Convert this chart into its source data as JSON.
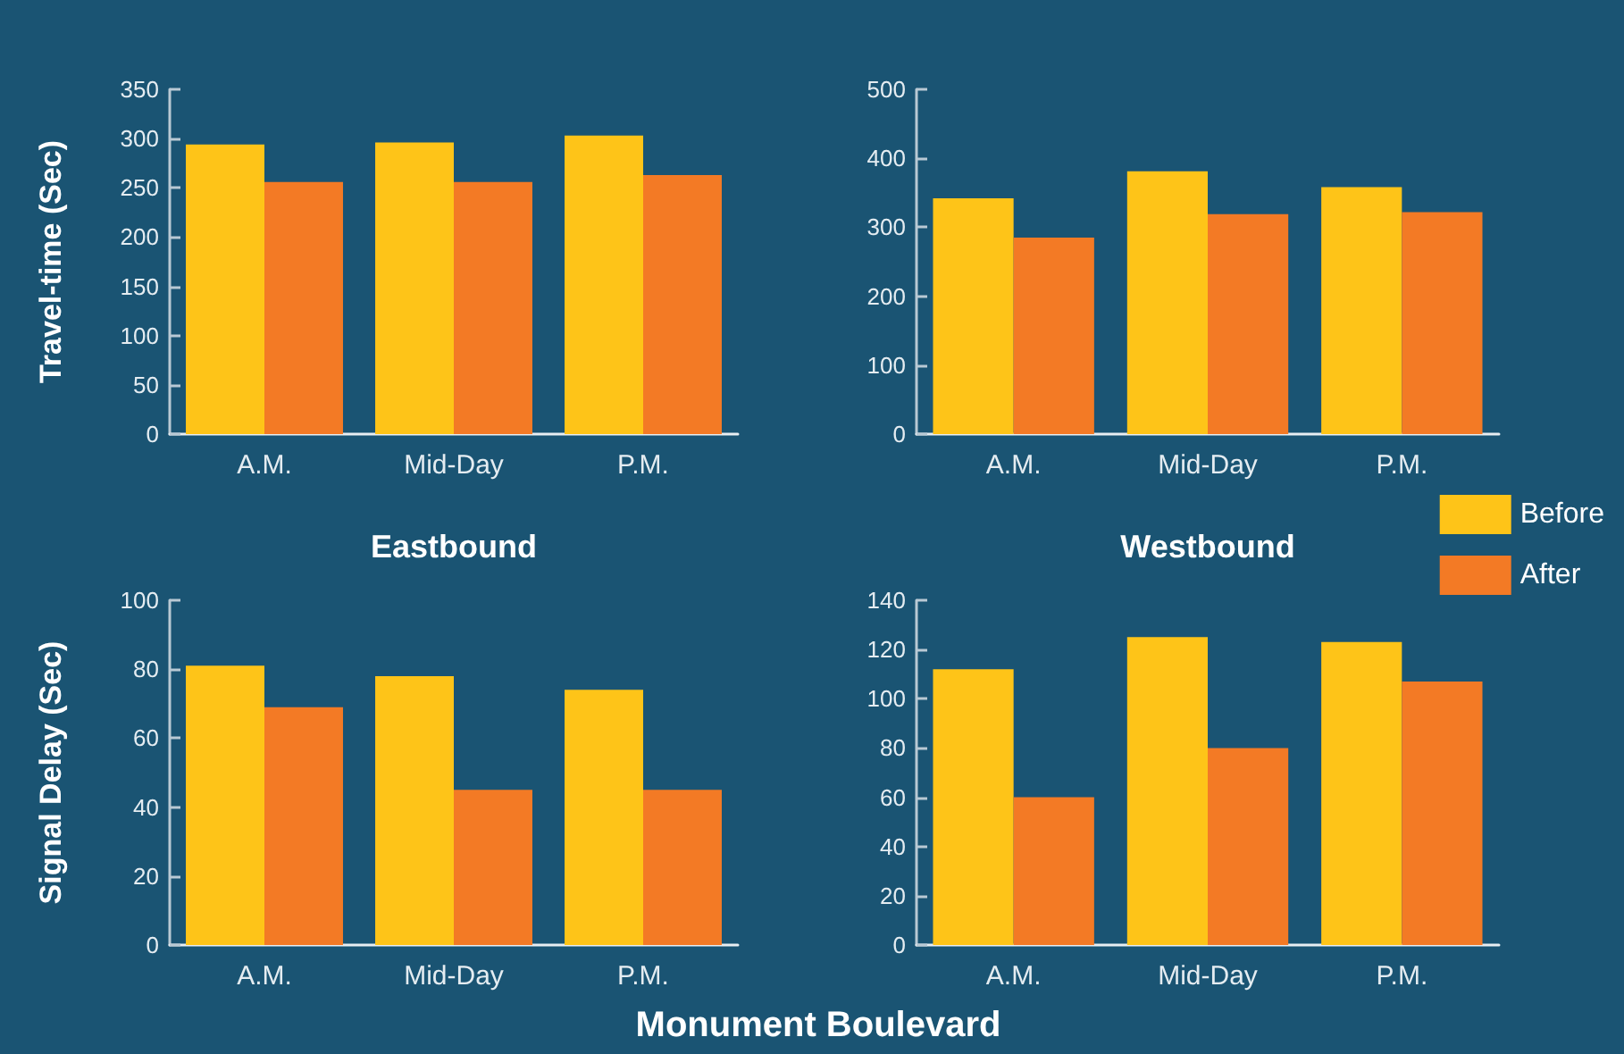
{
  "chart_data": [
    {
      "type": "bar",
      "xlabel": "Eastbound",
      "ylabel": "Travel-time (Sec)",
      "categories": [
        "A.M.",
        "Mid-Day",
        "P.M."
      ],
      "series": [
        {
          "color": "#fec418",
          "values": [
            294,
            296,
            303
          ]
        },
        {
          "color": "#f37a25",
          "values": [
            256,
            256,
            263
          ]
        }
      ],
      "ylim": [
        0,
        350
      ],
      "yticks": [
        0,
        50,
        100,
        150,
        200,
        250,
        300,
        350
      ],
      "grid": false
    },
    {
      "type": "bar",
      "xlabel": "Westbound",
      "categories": [
        "A.M.",
        "Mid-Day",
        "P.M."
      ],
      "series": [
        {
          "name": "Before",
          "color": "#fec418",
          "values": [
            342,
            381,
            358
          ]
        },
        {
          "name": "After",
          "color": "#f37a25",
          "values": [
            285,
            319,
            322
          ]
        }
      ],
      "ylim": [
        0,
        500
      ],
      "yticks": [
        0,
        100,
        200,
        300,
        400,
        500
      ],
      "grid": false,
      "legend": "bottom right"
    },
    {
      "type": "bar",
      "ylabel": "Signal Delay (Sec)",
      "categories": [
        "A.M.",
        "Mid-Day",
        "P.M."
      ],
      "series": [
        {
          "color": "#fec418",
          "values": [
            81,
            78,
            74
          ]
        },
        {
          "color": "#f37a25",
          "values": [
            69,
            45,
            45
          ]
        }
      ],
      "ylim": [
        0,
        100
      ],
      "yticks": [
        0,
        20,
        40,
        60,
        80,
        100
      ],
      "grid": false
    },
    {
      "type": "bar",
      "annotations": [
        "Monument Boulevard"
      ],
      "categories": [
        "A.M.",
        "Mid-Day",
        "P.M."
      ],
      "series": [
        {
          "color": "#fec418",
          "values": [
            112,
            125,
            123
          ]
        },
        {
          "color": "#f37a25",
          "values": [
            60,
            80,
            107
          ]
        }
      ],
      "ylim": [
        0,
        140
      ],
      "yticks": [
        0,
        20,
        40,
        60,
        80,
        100,
        120,
        140
      ],
      "grid": false
    }
  ]
}
